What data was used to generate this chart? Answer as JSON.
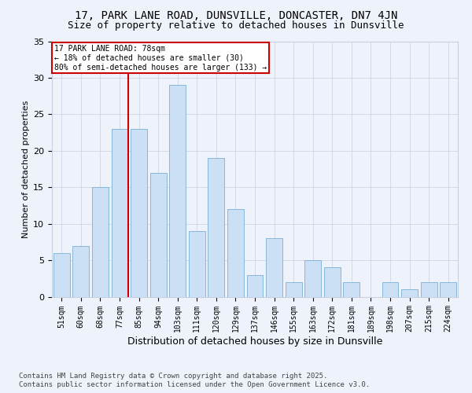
{
  "title": "17, PARK LANE ROAD, DUNSVILLE, DONCASTER, DN7 4JN",
  "subtitle": "Size of property relative to detached houses in Dunsville",
  "xlabel": "Distribution of detached houses by size in Dunsville",
  "ylabel": "Number of detached properties",
  "footer_line1": "Contains HM Land Registry data © Crown copyright and database right 2025.",
  "footer_line2": "Contains public sector information licensed under the Open Government Licence v3.0.",
  "categories": [
    "51sqm",
    "60sqm",
    "68sqm",
    "77sqm",
    "85sqm",
    "94sqm",
    "103sqm",
    "111sqm",
    "120sqm",
    "129sqm",
    "137sqm",
    "146sqm",
    "155sqm",
    "163sqm",
    "172sqm",
    "181sqm",
    "189sqm",
    "198sqm",
    "207sqm",
    "215sqm",
    "224sqm"
  ],
  "values": [
    6,
    7,
    15,
    23,
    23,
    17,
    29,
    9,
    19,
    12,
    3,
    8,
    2,
    5,
    4,
    2,
    0,
    2,
    1,
    2,
    2
  ],
  "bar_color": "#cce0f5",
  "bar_edge_color": "#7aafd4",
  "ref_line_color": "#cc0000",
  "annotation_line1": "17 PARK LANE ROAD: 78sqm",
  "annotation_line2": "← 18% of detached houses are smaller (30)",
  "annotation_line3": "80% of semi-detached houses are larger (133) →",
  "annotation_box_facecolor": "#ffffff",
  "annotation_box_edgecolor": "#cc0000",
  "bg_color": "#eef2fb",
  "ylim": [
    0,
    35
  ],
  "yticks": [
    0,
    5,
    10,
    15,
    20,
    25,
    30,
    35
  ],
  "grid_color": "#c8cfe0",
  "title_fontsize": 10,
  "subtitle_fontsize": 9,
  "ylabel_fontsize": 8,
  "xlabel_fontsize": 9,
  "tick_fontsize": 7,
  "annotation_fontsize": 7,
  "footer_fontsize": 6.5
}
